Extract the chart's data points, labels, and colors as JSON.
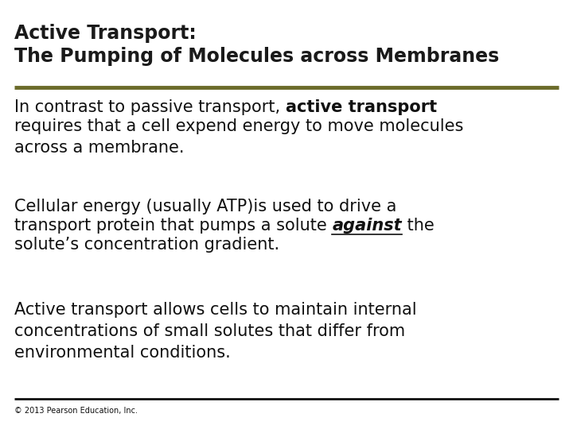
{
  "title_line1": "Active Transport:",
  "title_line2": "The Pumping of Molecules across Membranes",
  "title_color": "#1a1a1a",
  "title_fontsize": 17,
  "olive_line_color": "#6b6b2a",
  "black_line_color": "#111111",
  "body_fontsize": 15,
  "body_color": "#111111",
  "copyright": "© 2013 Pearson Education, Inc.",
  "copyright_fontsize": 7,
  "background_color": "#ffffff",
  "para3": "Active transport allows cells to maintain internal\nconcentrations of small solutes that differ from\nenvironmental conditions."
}
